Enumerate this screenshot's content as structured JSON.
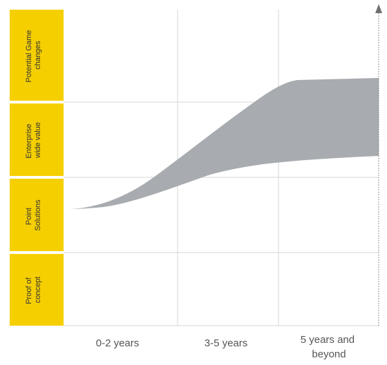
{
  "colors": {
    "band_fill": "#F5CF00",
    "area_fill": "#A8ABAF",
    "grid": "#D6D6D6",
    "axis": "#6F6F6F"
  },
  "stages": [
    {
      "lines": [
        "Proof of",
        "concept"
      ]
    },
    {
      "lines": [
        "Point",
        "Solutions"
      ]
    },
    {
      "lines": [
        "Enterprise",
        "wide value"
      ]
    },
    {
      "lines": [
        "Potential Game",
        "changes"
      ]
    }
  ],
  "periods": [
    {
      "lines": [
        "0-2 years"
      ]
    },
    {
      "lines": [
        "3-5 years"
      ]
    },
    {
      "lines": [
        "5 years and",
        "beyond"
      ]
    }
  ]
}
